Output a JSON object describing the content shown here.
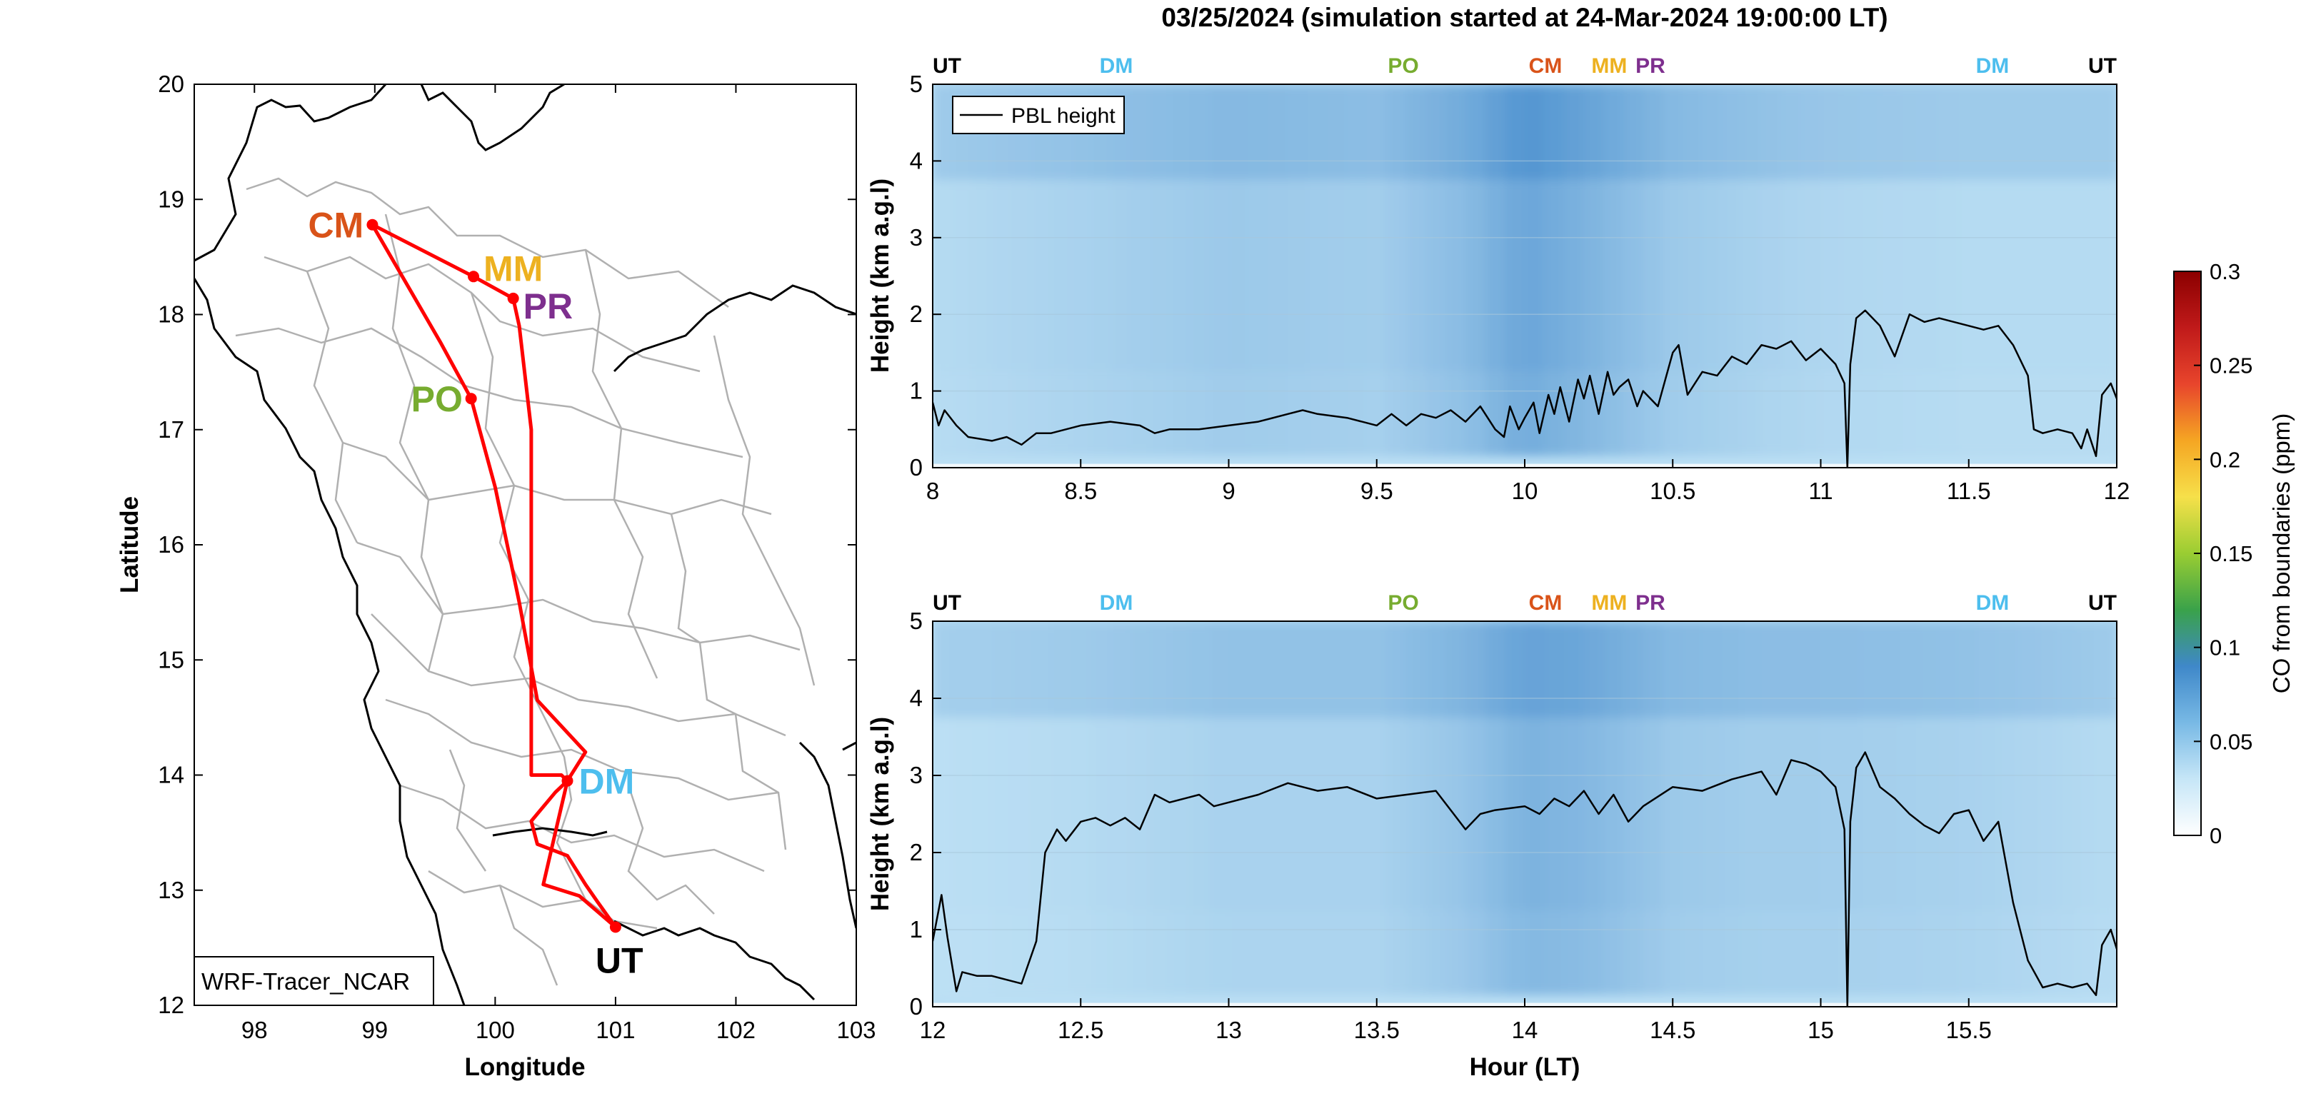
{
  "title": "03/25/2024 (simulation started at 24-Mar-2024 19:00:00 LT)",
  "colors": {
    "CM": "#d95319",
    "MM": "#edb120",
    "PR": "#7e2f8e",
    "PO": "#77ac30",
    "DM": "#4dbeee",
    "UT": "#000000",
    "route": "#ff0000",
    "boundary": "#b0b0b0",
    "coast": "#000000",
    "pbl": "#000000",
    "field_low": "#c8e8f8",
    "field_high": "#4a8fce"
  },
  "chart_data": [
    {
      "type": "map",
      "xlabel": "Longitude",
      "ylabel": "Latitude",
      "xlim": [
        97.5,
        103
      ],
      "ylim": [
        12,
        20
      ],
      "xticks": [
        "98",
        "99",
        "100",
        "101",
        "102",
        "103"
      ],
      "yticks": [
        "12",
        "13",
        "14",
        "15",
        "16",
        "17",
        "18",
        "19",
        "20"
      ],
      "legend_text": "WRF-Tracer_NCAR",
      "legend_position": "bottom-left",
      "stations": [
        {
          "name": "CM",
          "lon": 98.98,
          "lat": 18.78
        },
        {
          "name": "MM",
          "lon": 99.82,
          "lat": 18.33
        },
        {
          "name": "PR",
          "lon": 100.15,
          "lat": 18.14
        },
        {
          "name": "PO",
          "lon": 99.8,
          "lat": 17.27
        },
        {
          "name": "DM",
          "lon": 100.6,
          "lat": 13.95
        },
        {
          "name": "UT",
          "lon": 101.0,
          "lat": 12.68
        }
      ],
      "route": [
        [
          101.0,
          12.68
        ],
        [
          100.7,
          12.95
        ],
        [
          100.4,
          13.05
        ],
        [
          100.5,
          13.5
        ],
        [
          100.6,
          13.95
        ],
        [
          100.75,
          14.2
        ],
        [
          100.35,
          14.65
        ],
        [
          100.2,
          15.5
        ],
        [
          100.0,
          16.5
        ],
        [
          99.8,
          17.27
        ],
        [
          99.55,
          17.75
        ],
        [
          98.98,
          18.78
        ],
        [
          99.82,
          18.33
        ],
        [
          100.15,
          18.14
        ],
        [
          100.2,
          17.9
        ],
        [
          100.3,
          17.0
        ],
        [
          100.3,
          16.0
        ],
        [
          100.3,
          15.0
        ],
        [
          100.3,
          14.0
        ],
        [
          100.55,
          14.0
        ],
        [
          100.6,
          13.95
        ],
        [
          100.5,
          13.85
        ],
        [
          100.3,
          13.6
        ],
        [
          100.35,
          13.4
        ],
        [
          100.6,
          13.3
        ],
        [
          100.75,
          13.05
        ],
        [
          100.85,
          12.9
        ],
        [
          101.0,
          12.68
        ]
      ]
    },
    {
      "type": "heatmap",
      "title": "",
      "xlabel": "",
      "ylabel": "Height (km a.g.l)",
      "xlim": [
        8,
        12
      ],
      "ylim": [
        0,
        5
      ],
      "xticks": [
        "8",
        "8.5",
        "9",
        "9.5",
        "10",
        "10.5",
        "11",
        "11.5",
        "12"
      ],
      "yticks": [
        "0",
        "1",
        "2",
        "3",
        "4",
        "5"
      ],
      "legend": {
        "entry": "PBL height",
        "position": "top-left"
      },
      "station_markers": [
        {
          "name": "UT",
          "x": 8.0
        },
        {
          "name": "DM",
          "x": 8.62
        },
        {
          "name": "PO",
          "x": 9.59
        },
        {
          "name": "CM",
          "x": 10.07
        },
        {
          "name": "MM",
          "x": 10.3
        },
        {
          "name": "PR",
          "x": 10.41
        },
        {
          "name": "DM",
          "x": 11.58
        },
        {
          "name": "UT",
          "x": 12.0
        }
      ],
      "pbl_height": {
        "x": [
          8.0,
          8.02,
          8.04,
          8.08,
          8.12,
          8.2,
          8.25,
          8.3,
          8.35,
          8.4,
          8.5,
          8.6,
          8.7,
          8.75,
          8.8,
          8.9,
          9.0,
          9.1,
          9.2,
          9.25,
          9.3,
          9.4,
          9.5,
          9.55,
          9.6,
          9.65,
          9.7,
          9.75,
          9.8,
          9.85,
          9.9,
          9.93,
          9.95,
          9.98,
          10.0,
          10.03,
          10.05,
          10.08,
          10.1,
          10.12,
          10.15,
          10.18,
          10.2,
          10.22,
          10.25,
          10.28,
          10.3,
          10.32,
          10.35,
          10.38,
          10.4,
          10.45,
          10.5,
          10.52,
          10.55,
          10.6,
          10.65,
          10.7,
          10.75,
          10.8,
          10.85,
          10.9,
          10.95,
          11.0,
          11.05,
          11.08,
          11.09,
          11.1,
          11.12,
          11.15,
          11.2,
          11.25,
          11.3,
          11.35,
          11.4,
          11.45,
          11.5,
          11.55,
          11.6,
          11.65,
          11.7,
          11.72,
          11.75,
          11.8,
          11.85,
          11.88,
          11.9,
          11.93,
          11.95,
          11.98,
          12.0
        ],
        "y": [
          0.85,
          0.55,
          0.75,
          0.55,
          0.4,
          0.35,
          0.4,
          0.3,
          0.45,
          0.45,
          0.55,
          0.6,
          0.55,
          0.45,
          0.5,
          0.5,
          0.55,
          0.6,
          0.7,
          0.75,
          0.7,
          0.65,
          0.55,
          0.7,
          0.55,
          0.7,
          0.65,
          0.75,
          0.6,
          0.8,
          0.5,
          0.4,
          0.8,
          0.5,
          0.65,
          0.85,
          0.45,
          0.95,
          0.7,
          1.05,
          0.6,
          1.15,
          0.9,
          1.2,
          0.7,
          1.25,
          0.95,
          1.05,
          1.15,
          0.8,
          1.0,
          0.8,
          1.5,
          1.6,
          0.95,
          1.25,
          1.2,
          1.45,
          1.35,
          1.6,
          1.55,
          1.65,
          1.4,
          1.55,
          1.35,
          1.1,
          0.0,
          1.35,
          1.95,
          2.05,
          1.85,
          1.45,
          2.0,
          1.9,
          1.95,
          1.9,
          1.85,
          1.8,
          1.85,
          1.6,
          1.2,
          0.5,
          0.45,
          0.5,
          0.45,
          0.25,
          0.5,
          0.15,
          0.95,
          1.1,
          0.9
        ]
      },
      "co_field_profile": {
        "x": [
          8.0,
          8.5,
          9.0,
          9.5,
          9.8,
          10.0,
          10.2,
          10.5,
          10.8,
          11.0,
          11.5,
          12.0
        ],
        "intensity": [
          0.15,
          0.25,
          0.35,
          0.3,
          0.5,
          0.75,
          0.6,
          0.35,
          0.25,
          0.2,
          0.15,
          0.15
        ]
      }
    },
    {
      "type": "heatmap",
      "title": "",
      "xlabel": "Hour (LT)",
      "ylabel": "Height (km a.g.l)",
      "xlim": [
        12,
        16
      ],
      "ylim": [
        0,
        5
      ],
      "xticks": [
        "12",
        "12.5",
        "13",
        "13.5",
        "14",
        "14.5",
        "15",
        "15.5"
      ],
      "yticks": [
        "0",
        "1",
        "2",
        "3",
        "4",
        "5"
      ],
      "station_markers": [
        {
          "name": "UT",
          "x": 12.0
        },
        {
          "name": "DM",
          "x": 12.62
        },
        {
          "name": "PO",
          "x": 13.59
        },
        {
          "name": "CM",
          "x": 14.07
        },
        {
          "name": "MM",
          "x": 14.3
        },
        {
          "name": "PR",
          "x": 14.41
        },
        {
          "name": "DM",
          "x": 15.58
        },
        {
          "name": "UT",
          "x": 16.0
        }
      ],
      "pbl_height": {
        "x": [
          12.0,
          12.03,
          12.05,
          12.08,
          12.1,
          12.15,
          12.2,
          12.25,
          12.3,
          12.35,
          12.38,
          12.42,
          12.45,
          12.5,
          12.55,
          12.6,
          12.65,
          12.7,
          12.75,
          12.8,
          12.85,
          12.9,
          12.95,
          13.0,
          13.1,
          13.2,
          13.3,
          13.4,
          13.5,
          13.6,
          13.7,
          13.75,
          13.8,
          13.85,
          13.9,
          14.0,
          14.05,
          14.1,
          14.15,
          14.2,
          14.25,
          14.3,
          14.35,
          14.4,
          14.5,
          14.6,
          14.7,
          14.8,
          14.85,
          14.9,
          14.95,
          15.0,
          15.05,
          15.08,
          15.09,
          15.1,
          15.12,
          15.15,
          15.2,
          15.25,
          15.3,
          15.35,
          15.4,
          15.45,
          15.5,
          15.55,
          15.6,
          15.65,
          15.7,
          15.75,
          15.8,
          15.85,
          15.9,
          15.93,
          15.95,
          15.98,
          16.0
        ],
        "y": [
          0.85,
          1.45,
          0.9,
          0.2,
          0.45,
          0.4,
          0.4,
          0.35,
          0.3,
          0.85,
          2.0,
          2.3,
          2.15,
          2.4,
          2.45,
          2.35,
          2.45,
          2.3,
          2.75,
          2.65,
          2.7,
          2.75,
          2.6,
          2.65,
          2.75,
          2.9,
          2.8,
          2.85,
          2.7,
          2.75,
          2.8,
          2.55,
          2.3,
          2.5,
          2.55,
          2.6,
          2.5,
          2.7,
          2.6,
          2.8,
          2.5,
          2.75,
          2.4,
          2.6,
          2.85,
          2.8,
          2.95,
          3.05,
          2.75,
          3.2,
          3.15,
          3.05,
          2.85,
          2.3,
          0.0,
          2.4,
          3.1,
          3.3,
          2.85,
          2.7,
          2.5,
          2.35,
          2.25,
          2.5,
          2.55,
          2.15,
          2.4,
          1.35,
          0.6,
          0.25,
          0.3,
          0.25,
          0.3,
          0.15,
          0.8,
          1.0,
          0.75
        ]
      },
      "co_field_profile": {
        "x": [
          12.0,
          12.5,
          13.0,
          13.5,
          13.8,
          14.0,
          14.2,
          14.5,
          14.8,
          15.0,
          15.5,
          16.0
        ],
        "intensity": [
          0.1,
          0.15,
          0.25,
          0.25,
          0.4,
          0.6,
          0.55,
          0.35,
          0.3,
          0.3,
          0.25,
          0.15
        ]
      }
    },
    {
      "type": "colorbar",
      "label": "CO from boundaries (ppm)",
      "range": [
        0,
        0.3
      ],
      "ticks": [
        "0",
        "0.05",
        "0.1",
        "0.15",
        "0.2",
        "0.25",
        "0.3"
      ],
      "colormap": [
        "#ffffff",
        "#c6e6f7",
        "#78b9e5",
        "#3f88c9",
        "#3aa24a",
        "#9acd32",
        "#f6e04a",
        "#f5a623",
        "#e8452c",
        "#c01a1a",
        "#8b0000"
      ]
    }
  ]
}
